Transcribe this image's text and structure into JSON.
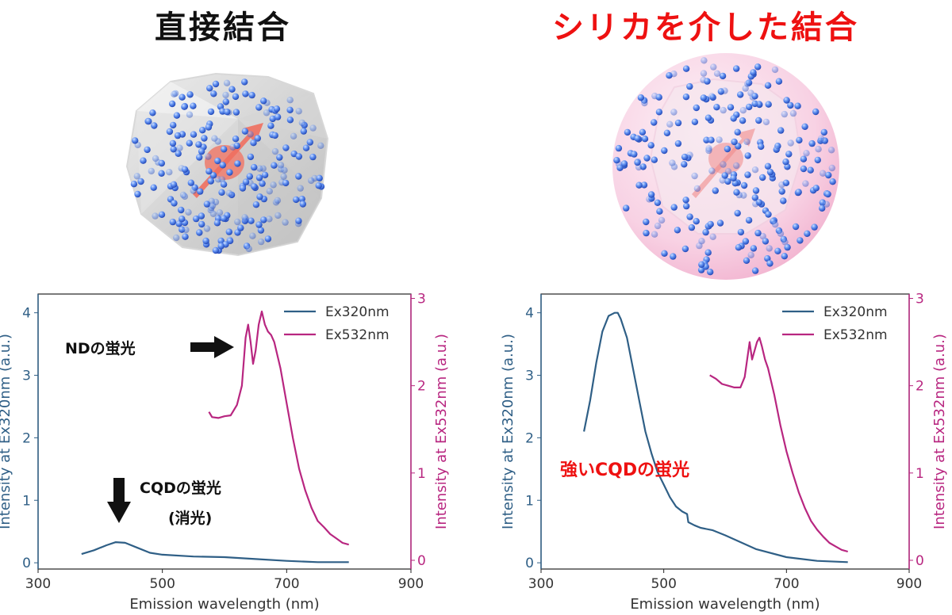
{
  "titles": {
    "left": "直接結合",
    "right": "シリカを介した結合"
  },
  "colors": {
    "ex320": "#2f5f86",
    "ex532": "#b82680",
    "red_text": "#ee1111",
    "dot": "#3d6fe8"
  },
  "chart_data": [
    {
      "type": "line",
      "xlabel": "Emission wavelength (nm)",
      "ylabel_left": "Intensity at Ex320nm (a.u.)",
      "ylabel_right": "Intensity at Ex532nm (a.u.)",
      "xlim": [
        300,
        900
      ],
      "ylim_left": [
        -0.1,
        4.3
      ],
      "ylim_right": [
        -0.1,
        3.05
      ],
      "xticks": [
        300,
        500,
        700,
        900
      ],
      "yticks_left": [
        0,
        1,
        2,
        3,
        4
      ],
      "yticks_right": [
        0,
        1,
        2,
        3
      ],
      "legend_position": "top-right",
      "grid": false,
      "series": [
        {
          "name": "Ex320nm",
          "axis": "left",
          "x": [
            370,
            390,
            410,
            425,
            440,
            460,
            480,
            500,
            550,
            600,
            650,
            700,
            750,
            800
          ],
          "y": [
            0.14,
            0.2,
            0.28,
            0.33,
            0.32,
            0.24,
            0.16,
            0.13,
            0.1,
            0.09,
            0.06,
            0.03,
            0.01,
            0.01
          ]
        },
        {
          "name": "Ex532nm",
          "axis": "right",
          "x": [
            575,
            580,
            590,
            600,
            610,
            620,
            628,
            634,
            638,
            642,
            646,
            650,
            655,
            660,
            665,
            670,
            675,
            680,
            690,
            700,
            710,
            720,
            730,
            740,
            750,
            760,
            770,
            780,
            790,
            800
          ],
          "y": [
            1.7,
            1.64,
            1.63,
            1.65,
            1.66,
            1.78,
            2.0,
            2.55,
            2.7,
            2.5,
            2.25,
            2.4,
            2.7,
            2.85,
            2.7,
            2.62,
            2.58,
            2.5,
            2.2,
            1.8,
            1.4,
            1.05,
            0.8,
            0.6,
            0.45,
            0.38,
            0.3,
            0.25,
            0.2,
            0.18
          ]
        }
      ],
      "annotations": {
        "nd": "NDの蛍光",
        "cqd_line1": "CQDの蛍光",
        "cqd_line2": "(消光)"
      }
    },
    {
      "type": "line",
      "xlabel": "Emission wavelength (nm)",
      "ylabel_left": "Intensity at Ex320nm (a.u.)",
      "ylabel_right": "Intensity at Ex532nm (a.u.)",
      "xlim": [
        300,
        900
      ],
      "ylim_left": [
        -0.1,
        4.3
      ],
      "ylim_right": [
        -0.1,
        3.05
      ],
      "xticks": [
        300,
        500,
        700,
        900
      ],
      "yticks_left": [
        0,
        1,
        2,
        3,
        4
      ],
      "yticks_right": [
        0,
        1,
        2,
        3
      ],
      "legend_position": "top-right",
      "grid": false,
      "series": [
        {
          "name": "Ex320nm",
          "axis": "left",
          "x": [
            370,
            380,
            390,
            400,
            410,
            420,
            425,
            430,
            440,
            450,
            460,
            470,
            480,
            490,
            500,
            510,
            520,
            530,
            538,
            540,
            550,
            560,
            580,
            600,
            650,
            700,
            750,
            800
          ],
          "y": [
            2.1,
            2.6,
            3.2,
            3.7,
            3.95,
            4.0,
            4.0,
            3.9,
            3.6,
            3.1,
            2.6,
            2.1,
            1.75,
            1.45,
            1.25,
            1.05,
            0.9,
            0.82,
            0.78,
            0.65,
            0.6,
            0.56,
            0.52,
            0.44,
            0.22,
            0.09,
            0.03,
            0.01
          ]
        },
        {
          "name": "Ex532nm",
          "axis": "right",
          "x": [
            575,
            585,
            595,
            605,
            615,
            625,
            632,
            636,
            640,
            644,
            648,
            652,
            656,
            660,
            665,
            670,
            680,
            690,
            700,
            710,
            720,
            730,
            740,
            750,
            760,
            770,
            780,
            790,
            800
          ],
          "y": [
            2.12,
            2.08,
            2.02,
            2.0,
            1.98,
            1.98,
            2.1,
            2.3,
            2.5,
            2.3,
            2.4,
            2.5,
            2.55,
            2.45,
            2.3,
            2.2,
            1.9,
            1.55,
            1.25,
            1.0,
            0.78,
            0.6,
            0.45,
            0.35,
            0.27,
            0.2,
            0.16,
            0.12,
            0.1
          ]
        }
      ],
      "annotations": {
        "strong": "強いCQDの蛍光"
      }
    }
  ]
}
